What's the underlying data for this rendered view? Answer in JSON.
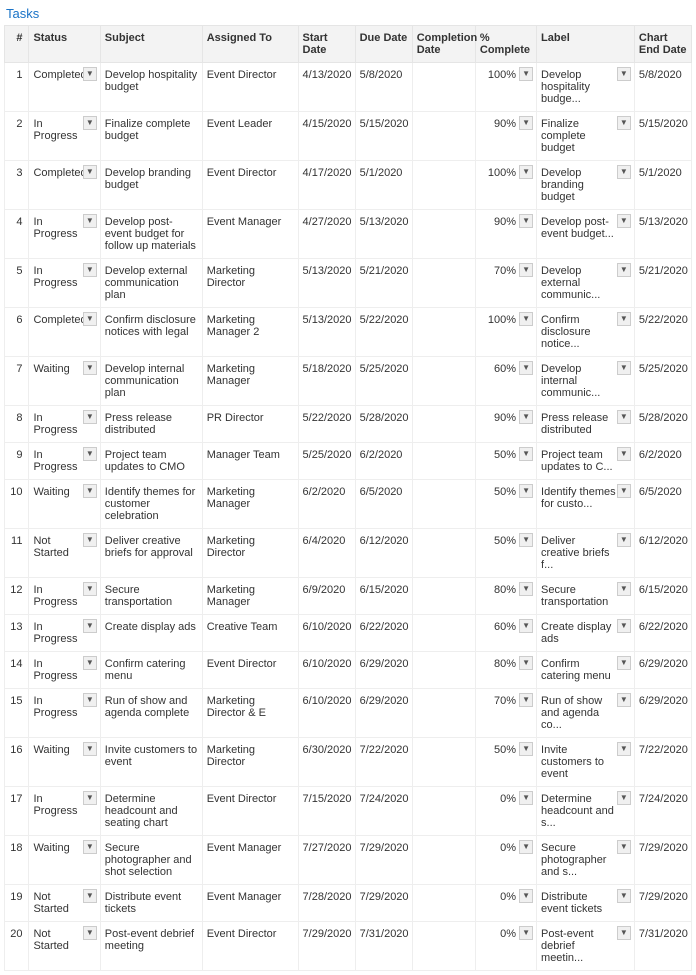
{
  "title": "Tasks",
  "columns": {
    "num": "#",
    "status": "Status",
    "subject": "Subject",
    "assigned": "Assigned To",
    "start": "Start Date",
    "due": "Due Date",
    "completion": "Completion Date",
    "pct": "% Complete",
    "label": "Label",
    "chartend": "Chart End Date"
  },
  "rows": [
    {
      "num": "1",
      "status": "Completed",
      "subject": "Develop hospitality budget",
      "assigned": "Event Director",
      "start": "4/13/2020",
      "due": "5/8/2020",
      "completion": "",
      "pct": "100%",
      "label": "Develop hospitality budge...",
      "chartend": "5/8/2020"
    },
    {
      "num": "2",
      "status": "In Progress",
      "subject": "Finalize complete budget",
      "assigned": "Event Leader",
      "start": "4/15/2020",
      "due": "5/15/2020",
      "completion": "",
      "pct": "90%",
      "label": "Finalize complete budget",
      "chartend": "5/15/2020"
    },
    {
      "num": "3",
      "status": "Completed",
      "subject": "Develop branding budget",
      "assigned": "Event Director",
      "start": "4/17/2020",
      "due": "5/1/2020",
      "completion": "",
      "pct": "100%",
      "label": "Develop branding budget",
      "chartend": "5/1/2020"
    },
    {
      "num": "4",
      "status": "In Progress",
      "subject": "Develop post-event budget for follow up materials",
      "assigned": "Event Manager",
      "start": "4/27/2020",
      "due": "5/13/2020",
      "completion": "",
      "pct": "90%",
      "label": "Develop post-event budget...",
      "chartend": "5/13/2020"
    },
    {
      "num": "5",
      "status": "In Progress",
      "subject": "Develop external communication plan",
      "assigned": "Marketing Director",
      "start": "5/13/2020",
      "due": "5/21/2020",
      "completion": "",
      "pct": "70%",
      "label": "Develop external communic...",
      "chartend": "5/21/2020"
    },
    {
      "num": "6",
      "status": "Completed",
      "subject": "Confirm disclosure notices with legal",
      "assigned": "Marketing Manager 2",
      "start": "5/13/2020",
      "due": "5/22/2020",
      "completion": "",
      "pct": "100%",
      "label": "Confirm disclosure notice...",
      "chartend": "5/22/2020"
    },
    {
      "num": "7",
      "status": "Waiting",
      "subject": "Develop internal communication plan",
      "assigned": "Marketing Manager",
      "start": "5/18/2020",
      "due": "5/25/2020",
      "completion": "",
      "pct": "60%",
      "label": "Develop internal communic...",
      "chartend": "5/25/2020"
    },
    {
      "num": "8",
      "status": "In Progress",
      "subject": "Press release distributed",
      "assigned": "PR Director",
      "start": "5/22/2020",
      "due": "5/28/2020",
      "completion": "",
      "pct": "90%",
      "label": "Press release distributed",
      "chartend": "5/28/2020"
    },
    {
      "num": "9",
      "status": "In Progress",
      "subject": "Project team updates to CMO",
      "assigned": "Manager Team",
      "start": "5/25/2020",
      "due": "6/2/2020",
      "completion": "",
      "pct": "50%",
      "label": "Project team updates to C...",
      "chartend": "6/2/2020"
    },
    {
      "num": "10",
      "status": "Waiting",
      "subject": "Identify themes for customer celebration",
      "assigned": "Marketing Manager",
      "start": "6/2/2020",
      "due": "6/5/2020",
      "completion": "",
      "pct": "50%",
      "label": "Identify themes for custo...",
      "chartend": "6/5/2020"
    },
    {
      "num": "11",
      "status": "Not Started",
      "subject": "Deliver creative briefs for approval",
      "assigned": "Marketing Director",
      "start": "6/4/2020",
      "due": "6/12/2020",
      "completion": "",
      "pct": "50%",
      "label": "Deliver creative briefs f...",
      "chartend": "6/12/2020"
    },
    {
      "num": "12",
      "status": "In Progress",
      "subject": "Secure transportation",
      "assigned": "Marketing Manager",
      "start": "6/9/2020",
      "due": "6/15/2020",
      "completion": "",
      "pct": "80%",
      "label": "Secure transportation",
      "chartend": "6/15/2020"
    },
    {
      "num": "13",
      "status": "In Progress",
      "subject": "Create display ads",
      "assigned": "Creative Team",
      "start": "6/10/2020",
      "due": "6/22/2020",
      "completion": "",
      "pct": "60%",
      "label": "Create display ads",
      "chartend": "6/22/2020"
    },
    {
      "num": "14",
      "status": "In Progress",
      "subject": "Confirm catering menu",
      "assigned": "Event Director",
      "start": "6/10/2020",
      "due": "6/29/2020",
      "completion": "",
      "pct": "80%",
      "label": "Confirm catering menu",
      "chartend": "6/29/2020"
    },
    {
      "num": "15",
      "status": "In Progress",
      "subject": "Run of show and agenda complete",
      "assigned": "Marketing Director & E",
      "start": "6/10/2020",
      "due": "6/29/2020",
      "completion": "",
      "pct": "70%",
      "label": "Run of show and agenda co...",
      "chartend": "6/29/2020"
    },
    {
      "num": "16",
      "status": "Waiting",
      "subject": "Invite customers to event",
      "assigned": "Marketing Director",
      "start": "6/30/2020",
      "due": "7/22/2020",
      "completion": "",
      "pct": "50%",
      "label": "Invite customers to event",
      "chartend": "7/22/2020"
    },
    {
      "num": "17",
      "status": "In Progress",
      "subject": "Determine headcount and seating chart",
      "assigned": "Event Director",
      "start": "7/15/2020",
      "due": "7/24/2020",
      "completion": "",
      "pct": "0%",
      "label": "Determine headcount and s...",
      "chartend": "7/24/2020"
    },
    {
      "num": "18",
      "status": "Waiting",
      "subject": "Secure photographer and shot selection",
      "assigned": "Event Manager",
      "start": "7/27/2020",
      "due": "7/29/2020",
      "completion": "",
      "pct": "0%",
      "label": "Secure photographer and s...",
      "chartend": "7/29/2020"
    },
    {
      "num": "19",
      "status": "Not Started",
      "subject": "Distribute event tickets",
      "assigned": "Event Manager",
      "start": "7/28/2020",
      "due": "7/29/2020",
      "completion": "",
      "pct": "0%",
      "label": "Distribute event tickets",
      "chartend": "7/29/2020"
    },
    {
      "num": "20",
      "status": "Not Started",
      "subject": "Post-event debrief meeting",
      "assigned": "Event Director",
      "start": "7/29/2020",
      "due": "7/31/2020",
      "completion": "",
      "pct": "0%",
      "label": "Post-event debrief meetin...",
      "chartend": "7/31/2020"
    }
  ]
}
